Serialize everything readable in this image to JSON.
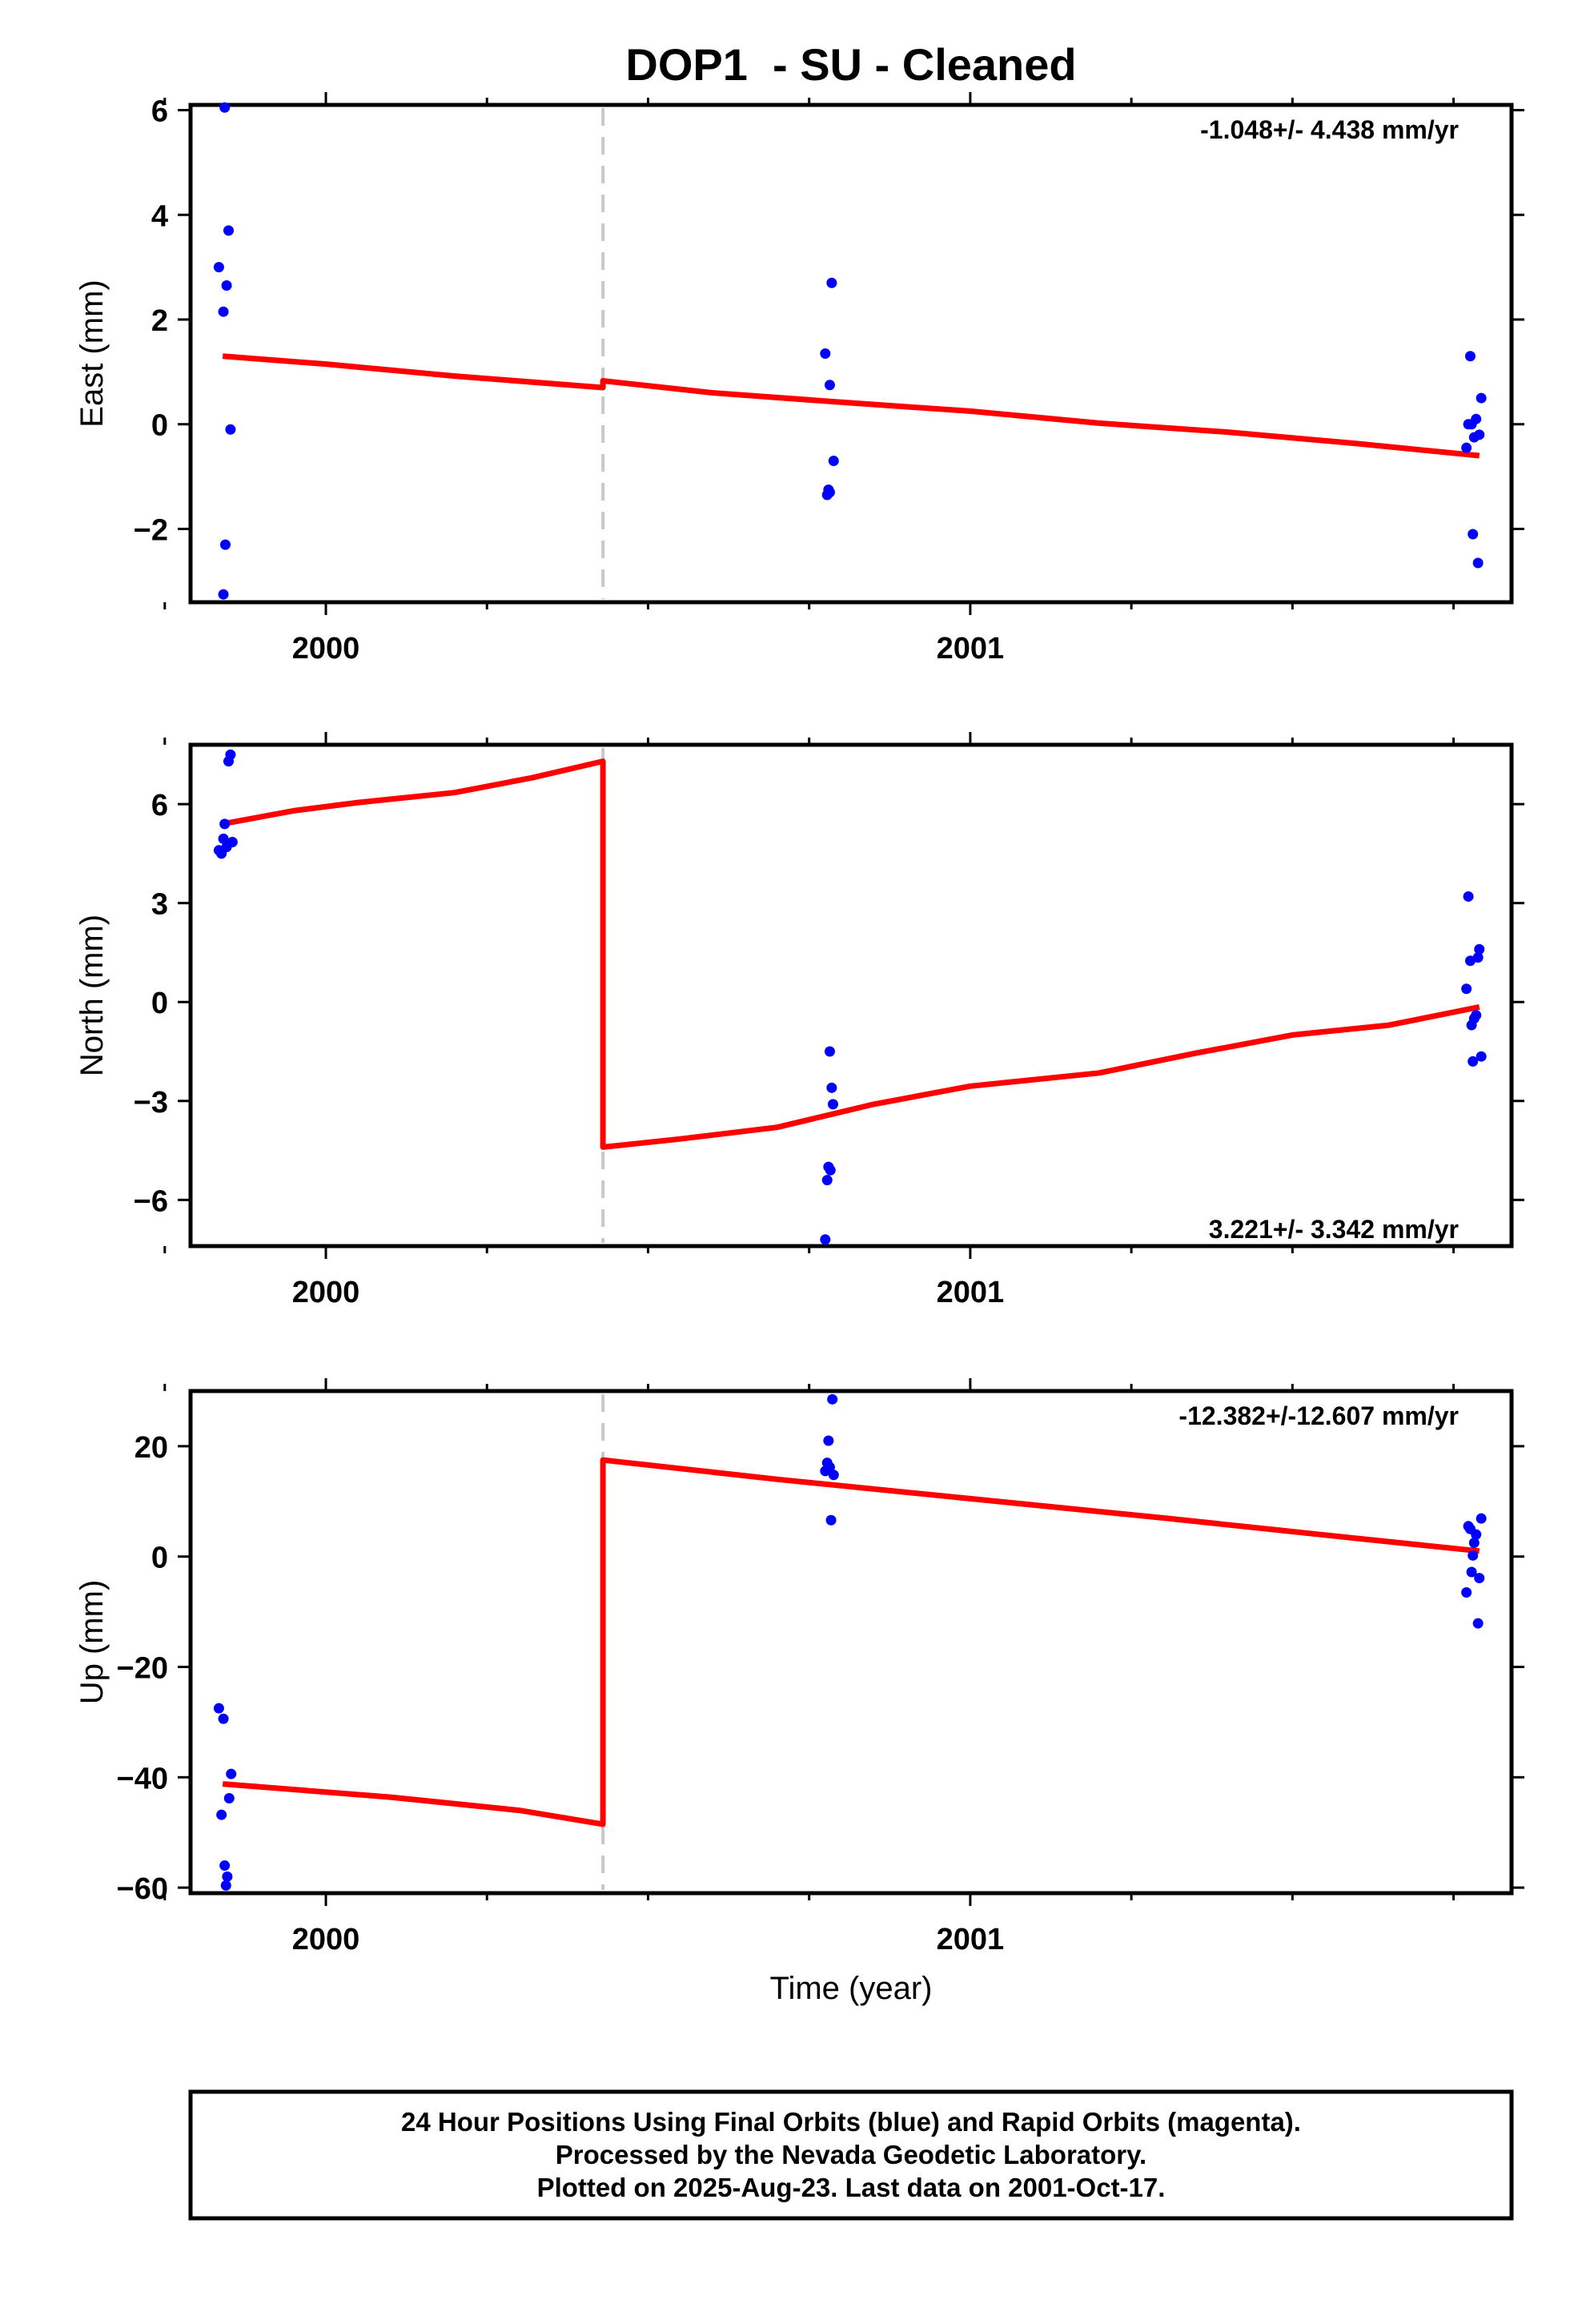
{
  "chart_data": {
    "title": "DOP1  - SU - Cleaned",
    "type": "scatter",
    "xlabel": "Time (year)",
    "xlim": [
      1999.79,
      2001.84
    ],
    "x_ticks": [
      2000,
      2001
    ],
    "x_tick_labels": [
      "2000",
      "2001"
    ],
    "offset_epoch": 2000.43,
    "colors": {
      "data": "#0000ff",
      "model": "#ff0000",
      "offset": "#c8c8c8"
    },
    "panels": [
      {
        "id": "east",
        "ylabel": "East (mm)",
        "ylim": [
          -3.4,
          6.1
        ],
        "y_ticks": [
          -2,
          0,
          2,
          4,
          6
        ],
        "y_tick_labels": [
          "−2",
          "0",
          "2",
          "4",
          "6"
        ],
        "rate_text": "-1.048+/- 4.438 mm/yr",
        "rate_position": "top-right",
        "points": [
          [
            1999.834,
            3.0
          ],
          [
            1999.841,
            2.15
          ],
          [
            1999.841,
            -3.25
          ],
          [
            1999.843,
            6.05
          ],
          [
            1999.844,
            -2.3
          ],
          [
            1999.846,
            2.65
          ],
          [
            1999.849,
            3.7
          ],
          [
            1999.852,
            -0.1
          ],
          [
            2000.775,
            1.35
          ],
          [
            2000.778,
            -1.35
          ],
          [
            2000.78,
            -1.25
          ],
          [
            2000.782,
            0.75
          ],
          [
            2000.782,
            -1.3
          ],
          [
            2000.785,
            2.7
          ],
          [
            2000.788,
            -0.7
          ],
          [
            2001.77,
            -0.45
          ],
          [
            2001.773,
            0.0
          ],
          [
            2001.776,
            1.3
          ],
          [
            2001.778,
            0.0
          ],
          [
            2001.78,
            -2.1
          ],
          [
            2001.782,
            -0.25
          ],
          [
            2001.785,
            0.1
          ],
          [
            2001.788,
            -2.65
          ],
          [
            2001.79,
            -0.2
          ],
          [
            2001.793,
            0.5
          ]
        ],
        "model": [
          [
            1999.84,
            1.3
          ],
          [
            2000.0,
            1.15
          ],
          [
            2000.2,
            0.92
          ],
          [
            2000.43,
            0.7
          ],
          [
            2000.43,
            0.83
          ],
          [
            2000.6,
            0.6
          ],
          [
            2000.8,
            0.42
          ],
          [
            2001.0,
            0.25
          ],
          [
            2001.2,
            0.02
          ],
          [
            2001.4,
            -0.15
          ],
          [
            2001.6,
            -0.37
          ],
          [
            2001.79,
            -0.6
          ]
        ]
      },
      {
        "id": "north",
        "ylabel": "North (mm)",
        "ylim": [
          -7.4,
          7.8
        ],
        "y_ticks": [
          -6,
          -3,
          0,
          3,
          6
        ],
        "y_tick_labels": [
          "−6",
          "−3",
          "0",
          "3",
          "6"
        ],
        "rate_text": "3.221+/- 3.342 mm/yr",
        "rate_position": "bottom-right",
        "points": [
          [
            1999.834,
            4.6
          ],
          [
            1999.838,
            4.5
          ],
          [
            1999.841,
            4.95
          ],
          [
            1999.843,
            5.4
          ],
          [
            1999.846,
            4.7
          ],
          [
            1999.849,
            7.3
          ],
          [
            1999.852,
            7.5
          ],
          [
            1999.855,
            4.85
          ],
          [
            2000.775,
            -7.2
          ],
          [
            2000.778,
            -5.4
          ],
          [
            2000.78,
            -5.0
          ],
          [
            2000.782,
            -1.5
          ],
          [
            2000.785,
            -2.6
          ],
          [
            2000.787,
            -3.1
          ],
          [
            2000.783,
            -5.1
          ],
          [
            2001.77,
            0.4
          ],
          [
            2001.773,
            3.2
          ],
          [
            2001.776,
            1.25
          ],
          [
            2001.778,
            -0.7
          ],
          [
            2001.78,
            -1.8
          ],
          [
            2001.782,
            -0.5
          ],
          [
            2001.785,
            -0.4
          ],
          [
            2001.788,
            1.35
          ],
          [
            2001.79,
            1.6
          ],
          [
            2001.793,
            -1.65
          ]
        ],
        "model": [
          [
            1999.84,
            5.4
          ],
          [
            1999.95,
            5.8
          ],
          [
            2000.05,
            6.05
          ],
          [
            2000.2,
            6.35
          ],
          [
            2000.32,
            6.8
          ],
          [
            2000.43,
            7.3
          ],
          [
            2000.43,
            -4.4
          ],
          [
            2000.55,
            -4.15
          ],
          [
            2000.7,
            -3.8
          ],
          [
            2000.85,
            -3.1
          ],
          [
            2001.0,
            -2.55
          ],
          [
            2001.2,
            -2.15
          ],
          [
            2001.35,
            -1.55
          ],
          [
            2001.5,
            -1.0
          ],
          [
            2001.65,
            -0.7
          ],
          [
            2001.79,
            -0.15
          ]
        ]
      },
      {
        "id": "up",
        "ylabel": "Up (mm)",
        "ylim": [
          -61,
          30
        ],
        "y_ticks": [
          -60,
          -40,
          -20,
          0,
          20
        ],
        "y_tick_labels": [
          "−60",
          "−40",
          "−20",
          "0",
          "20"
        ],
        "rate_text": "-12.382+/-12.607 mm/yr",
        "rate_position": "top-right",
        "points": [
          [
            1999.834,
            -27.5
          ],
          [
            1999.838,
            -46.8
          ],
          [
            1999.841,
            -29.4
          ],
          [
            1999.843,
            -56.0
          ],
          [
            1999.845,
            -59.6
          ],
          [
            1999.847,
            -58.0
          ],
          [
            1999.85,
            -43.8
          ],
          [
            1999.853,
            -39.4
          ],
          [
            2000.775,
            15.5
          ],
          [
            2000.778,
            17.0
          ],
          [
            2000.78,
            21.0
          ],
          [
            2000.782,
            16.2
          ],
          [
            2000.784,
            6.6
          ],
          [
            2000.786,
            28.5
          ],
          [
            2000.788,
            14.8
          ],
          [
            2001.77,
            -6.5
          ],
          [
            2001.773,
            5.5
          ],
          [
            2001.776,
            5.0
          ],
          [
            2001.778,
            -2.8
          ],
          [
            2001.78,
            0.2
          ],
          [
            2001.782,
            2.5
          ],
          [
            2001.785,
            4.0
          ],
          [
            2001.788,
            -12.1
          ],
          [
            2001.79,
            -3.9
          ],
          [
            2001.793,
            6.9
          ]
        ],
        "model": [
          [
            1999.84,
            -41.2
          ],
          [
            2000.1,
            -43.6
          ],
          [
            2000.3,
            -46.0
          ],
          [
            2000.43,
            -48.5
          ],
          [
            2000.43,
            17.5
          ],
          [
            2000.7,
            14.0
          ],
          [
            2001.0,
            10.5
          ],
          [
            2001.3,
            7.0
          ],
          [
            2001.6,
            3.3
          ],
          [
            2001.79,
            1.0
          ]
        ]
      }
    ]
  },
  "footer": {
    "line1": "24 Hour Positions Using Final Orbits (blue) and Rapid Orbits (magenta).",
    "line2": "Processed by the Nevada Geodetic Laboratory.",
    "line3": "Plotted on 2025-Aug-23. Last data on 2001-Oct-17."
  }
}
